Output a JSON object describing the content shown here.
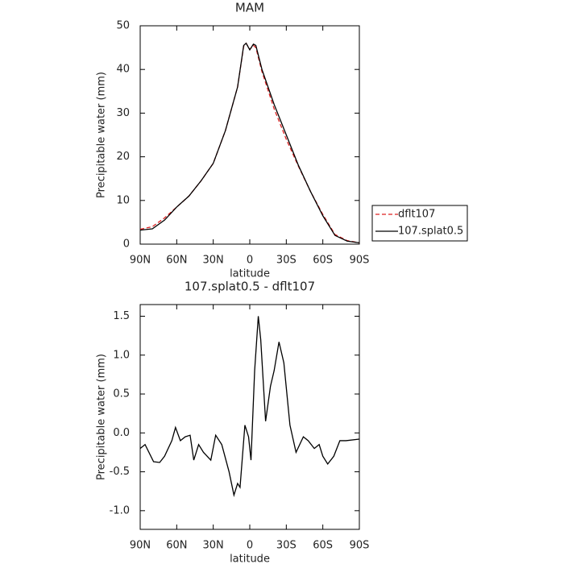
{
  "chart_data": [
    {
      "type": "line",
      "title": "MAM",
      "xlabel": "latitude",
      "ylabel": "Precipitable water (mm)",
      "x": [
        90,
        80,
        70,
        60,
        50,
        40,
        30,
        20,
        10,
        5,
        3,
        0,
        -3,
        -5,
        -10,
        -20,
        -30,
        -40,
        -50,
        -60,
        -70,
        -80,
        -90
      ],
      "series": [
        {
          "name": "dflt107",
          "color": "#dd2222",
          "dashed": true,
          "values": [
            3.4,
            4,
            6,
            8.5,
            11,
            14.5,
            18.5,
            26,
            36,
            45.3,
            46,
            44.6,
            45.5,
            45,
            39.5,
            31,
            24,
            17.8,
            12,
            6.8,
            2.2,
            0.8,
            0.3
          ]
        },
        {
          "name": "107.splat0.5",
          "color": "#000000",
          "dashed": false,
          "values": [
            3.2,
            3.5,
            5.5,
            8.5,
            11,
            14.5,
            18.5,
            26,
            36,
            45.5,
            46,
            44.5,
            45.8,
            45.5,
            40,
            32,
            25,
            18,
            12,
            6.5,
            2,
            0.7,
            0.3
          ]
        }
      ],
      "xlim": [
        90,
        -90
      ],
      "xticks": [
        {
          "value": 90,
          "label": "90N"
        },
        {
          "value": 60,
          "label": "60N"
        },
        {
          "value": 30,
          "label": "30N"
        },
        0,
        {
          "value": -30,
          "label": "30S"
        },
        {
          "value": -60,
          "label": "60S"
        },
        {
          "value": -90,
          "label": "90S"
        }
      ],
      "ylim": [
        0,
        50
      ],
      "yticks": [
        0,
        10,
        20,
        30,
        40,
        50
      ],
      "legend": "right"
    },
    {
      "type": "line",
      "title": "107.splat0.5 - dflt107",
      "xlabel": "latitude",
      "ylabel": "Precipitable water (mm)",
      "x": [
        90,
        86,
        79,
        74,
        70,
        64,
        61,
        57,
        53,
        49,
        46,
        42,
        38,
        32,
        28,
        23,
        17,
        13,
        10,
        8,
        4,
        1,
        -1,
        -4,
        -7,
        -9,
        -13,
        -17,
        -20,
        -24,
        -28,
        -33,
        -38,
        -44,
        -48,
        -53,
        -57,
        -60,
        -64,
        -69,
        -74,
        -79,
        -90
      ],
      "values": [
        -0.2,
        -0.15,
        -0.37,
        -0.38,
        -0.3,
        -0.1,
        0.07,
        -0.1,
        -0.05,
        -0.03,
        -0.35,
        -0.15,
        -0.25,
        -0.35,
        -0.03,
        -0.15,
        -0.5,
        -0.8,
        -0.65,
        -0.7,
        0.1,
        -0.05,
        -0.35,
        0.8,
        1.5,
        1.2,
        0.15,
        0.6,
        0.8,
        1.17,
        0.9,
        0.1,
        -0.25,
        -0.05,
        -0.1,
        -0.2,
        -0.15,
        -0.3,
        -0.4,
        -0.3,
        -0.1,
        -0.1,
        -0.08
      ],
      "color": "#000000",
      "xlim": [
        90,
        -90
      ],
      "xticks": [
        {
          "value": 90,
          "label": "90N"
        },
        {
          "value": 60,
          "label": "60N"
        },
        {
          "value": 30,
          "label": "30N"
        },
        0,
        {
          "value": -30,
          "label": "30S"
        },
        {
          "value": -60,
          "label": "60S"
        },
        {
          "value": -90,
          "label": "90S"
        }
      ],
      "ylim": [
        -1.24,
        1.65
      ],
      "yticks": [
        {
          "value": -1,
          "label": "-1.0"
        },
        -0.5,
        {
          "value": 0,
          "label": "0.0"
        },
        0.5,
        {
          "value": 1,
          "label": "1.0"
        },
        1.5
      ]
    }
  ]
}
